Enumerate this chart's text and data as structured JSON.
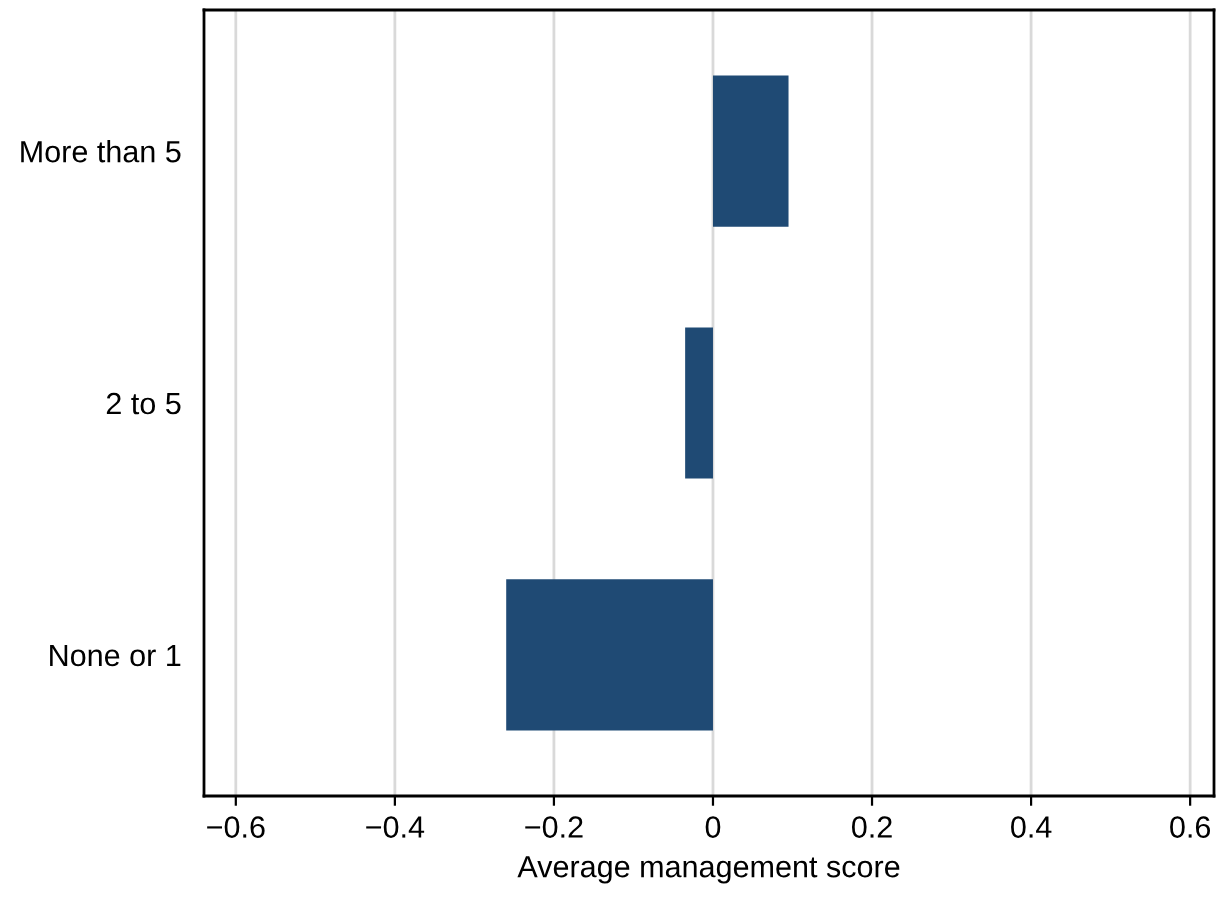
{
  "chart_data": {
    "type": "bar",
    "orientation": "horizontal",
    "xlabel": "Average management score",
    "categories": [
      "More than 5",
      "2 to 5",
      "None or 1"
    ],
    "values": [
      0.095,
      -0.035,
      -0.26
    ],
    "color": "#1f4a74",
    "xlim": [
      -0.64,
      0.63
    ],
    "xticks": [
      {
        "value": -0.6,
        "label": "−0.6"
      },
      {
        "value": -0.4,
        "label": "−0.4"
      },
      {
        "value": -0.2,
        "label": "−0.2"
      },
      0,
      0.2,
      0.4,
      0.6
    ],
    "grid": "x"
  }
}
